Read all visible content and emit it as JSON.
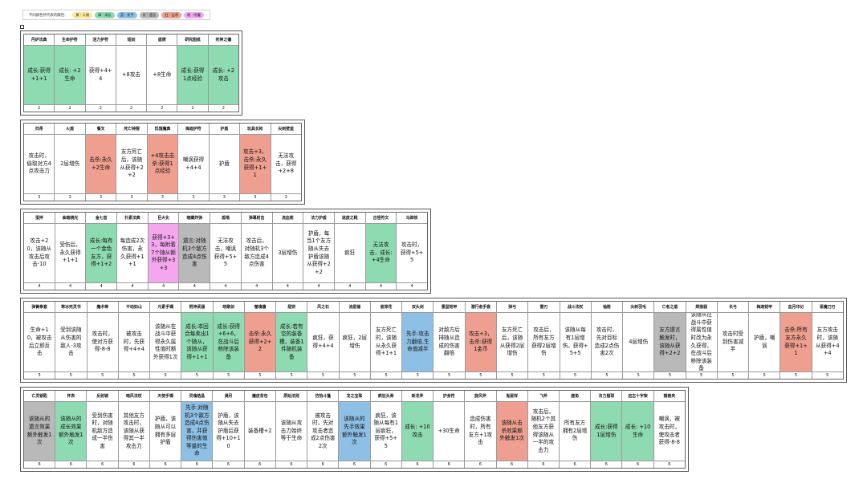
{
  "legend": {
    "title": "不同颜色所代表的属性：",
    "chips": [
      {
        "label": "黄 - 人物",
        "color": "#fbe89a"
      },
      {
        "label": "绿 - 成长",
        "color": "#8fdbb1"
      },
      {
        "label": "蓝 - 先手",
        "color": "#8ec0e6"
      },
      {
        "label": "灰 - 遗言",
        "color": "#b9b9b9"
      },
      {
        "label": "红 - 击杀",
        "color": "#ee9f8f"
      },
      {
        "label": "粉 - 附魔",
        "color": "#f4a7ef"
      }
    ]
  },
  "tiers": [
    {
      "tier": "2",
      "items": [
        {
          "name": "丹炉法典",
          "desc": "成长:获得+1+1",
          "color": "green"
        },
        {
          "name": "生命护符",
          "desc": "成长: +2生命",
          "color": "green"
        },
        {
          "name": "活力护符",
          "desc": "获得+4+4",
          "color": "none"
        },
        {
          "name": "短剑",
          "desc": "+8攻击",
          "color": "none"
        },
        {
          "name": "盾牌",
          "desc": "+8生命",
          "color": "none"
        },
        {
          "name": "研究图纸",
          "desc": "成长:获得1点经验",
          "color": "green"
        },
        {
          "name": "死神之镰",
          "desc": "成长: +2攻击",
          "color": "green"
        }
      ]
    },
    {
      "tier": "3",
      "items": [
        {
          "name": "扫帚",
          "desc": "攻击时，偷取对方4点攻击力",
          "color": "none"
        },
        {
          "name": "火盾",
          "desc": "2层增伤",
          "color": "none"
        },
        {
          "name": "餐叉",
          "desc": "击杀:永久+2生命",
          "color": "red"
        },
        {
          "name": "死亡钟摆",
          "desc": "友方死亡后，该随从获得+2+2",
          "color": "none"
        },
        {
          "name": "饥饿魔典",
          "desc": "+4攻击击杀:获得1点经验",
          "color": "red"
        },
        {
          "name": "梅迦护符",
          "desc": "嘲讽获得+4+4",
          "color": "none"
        },
        {
          "name": "护盾",
          "desc": "护盾",
          "color": "none"
        },
        {
          "name": "玩具长枪",
          "desc": "攻击+3，击杀:永久获得+1+1",
          "color": "red"
        },
        {
          "name": "尖刺壁垒",
          "desc": "无法攻击，获得+2+8",
          "color": "none"
        }
      ]
    },
    {
      "tier": "4",
      "items": [
        {
          "name": "蛋拌",
          "desc": "攻击+20，该随从攻击后攻击-10",
          "color": "none"
        },
        {
          "name": "曲端镜光",
          "desc": "受伤后，永久获得+1+1",
          "color": "none"
        },
        {
          "name": "金七首",
          "desc": "成长:每有一个金色友方，获得+1+2",
          "color": "green"
        },
        {
          "name": "扑素法典",
          "desc": "每造成2次伤害，永久获得+1+1",
          "color": "none"
        },
        {
          "name": "巨大化",
          "desc": "获得+3+3，每附着7个随从额外获得+3+3",
          "color": "pink"
        },
        {
          "name": "暗藏炸弹",
          "desc": "遗言:对随机3个敌方造成4点伤害",
          "color": "gray"
        },
        {
          "name": "盾墙",
          "desc": "无法攻击，嘲讽获得+5+5",
          "color": "none"
        },
        {
          "name": "弹幕射击",
          "desc": "攻击后，对随机3个敌方造成4点伤害",
          "color": "none"
        },
        {
          "name": "流血箭",
          "desc": "3层增伤",
          "color": "none"
        },
        {
          "name": "法力护盾",
          "desc": "护盾，每当1个友方随从失去护盾该随从获得+2+2",
          "color": "none"
        },
        {
          "name": "速度之靴",
          "desc": "疯狂",
          "color": "none"
        },
        {
          "name": "古怪符文",
          "desc": "无法攻击，成长: +4生命",
          "color": "green"
        },
        {
          "name": "马蹄铁",
          "desc": "攻击时，获得+5+5",
          "color": "none"
        }
      ]
    },
    {
      "tier": "5",
      "items": [
        {
          "name": "弹簧拳套",
          "desc": "生命+10，被攻击后立即反击",
          "color": "none"
        },
        {
          "name": "寒冰死灵书",
          "desc": "受到该随从伤害的敌人-3攻击",
          "color": "none"
        },
        {
          "name": "魔术棒",
          "desc": "攻击时，使对方获得-8-8",
          "color": "none"
        },
        {
          "name": "不动如山",
          "desc": "被攻击时，先获得+4+4",
          "color": "none"
        },
        {
          "name": "元素手镯",
          "desc": "该随从在战斗中获得永久属性值时额外获得1次",
          "color": "none"
        },
        {
          "name": "附神武器",
          "desc": "成长:本回合每卖出1个随从，该随从获得+1+1",
          "color": "green"
        },
        {
          "name": "晓歌剑",
          "desc": "成长:获得+6+6，在战斗后移除该装备",
          "color": "green"
        },
        {
          "name": "噬魂镰",
          "desc": "击杀:永久获得+2+2",
          "color": "red"
        },
        {
          "name": "甜饼",
          "desc": "成长:若有空的装备槽，装备1件随机装备",
          "color": "green"
        },
        {
          "name": "风之石",
          "desc": "疯狂，获得+4+4",
          "color": "none"
        },
        {
          "name": "流星锤",
          "desc": "疯狂，2层增伤",
          "color": "none"
        },
        {
          "name": "彼岸花",
          "desc": "友方死亡时，该随从永久获得+1+1",
          "color": "none"
        },
        {
          "name": "双头剑",
          "desc": "先手:攻击力翻倍,生命值减半",
          "color": "blue"
        },
        {
          "name": "重型铠甲",
          "desc": "对敌方后排随从造成的伤害翻倍",
          "color": "none"
        },
        {
          "name": "潜行者手套",
          "desc": "攻击+3，击杀:获得1金币",
          "color": "red"
        },
        {
          "name": "弹弓",
          "desc": "友方死亡后，该随从获得2层增伤",
          "color": "none"
        },
        {
          "name": "雷刃",
          "desc": "攻击后，所有友方获得2层增伤",
          "color": "none"
        },
        {
          "name": "战斗法杖",
          "desc": "该随从每有1层增伤，获得+5+5",
          "color": "none"
        },
        {
          "name": "袖箭",
          "desc": "攻击时，先对目标造成2点伤害2次",
          "color": "none"
        },
        {
          "name": "尖刺羽毛",
          "desc": "4层增伤",
          "color": "none"
        },
        {
          "name": "亡者之盾",
          "desc": "友方遗言触发时，该随从获得+2+2",
          "color": "gray"
        },
        {
          "name": "焊接器",
          "desc": "该随从在战斗中获得属性值时改为永久获得，在战斗后移除该装备",
          "color": "none"
        },
        {
          "name": "长弓",
          "desc": "攻击时受到伤害减半",
          "color": "none"
        },
        {
          "name": "梅迦铠甲",
          "desc": "护盾，嘲讽",
          "color": "none"
        },
        {
          "name": "血月印记",
          "desc": "击杀:所有友方永久获得+1+1",
          "color": "red"
        },
        {
          "name": "恶魔刀刃",
          "desc": "友方攻击时，该随从获得+4+4",
          "color": "none"
        }
      ]
    },
    {
      "tier": "6",
      "items": [
        {
          "name": "亡灵钥匙",
          "desc": "该随从的遗言效果额外触发1次",
          "color": "gray"
        },
        {
          "name": "怀表",
          "desc": "该随从的成长效果额外触发1次",
          "color": "green"
        },
        {
          "name": "反射镜",
          "desc": "受到伤害时，对随机敌方造成一半伤害",
          "color": "none"
        },
        {
          "name": "暗风法杖",
          "desc": "其他友方攻击时，该随从获得其一半攻击力",
          "color": "none"
        },
        {
          "name": "天使手镯",
          "desc": "护盾，该随从可以拥有多层护盾",
          "color": "none"
        },
        {
          "name": "灵魂结晶",
          "desc": "先手:对随机3个敌方造成4点伤害，并获得伤害值等量的生命",
          "color": "blue"
        },
        {
          "name": "满月",
          "desc": "护盾，该随从失去护盾后获得+10+10",
          "color": "none"
        },
        {
          "name": "魔皮背包",
          "desc": "装备槽+2",
          "color": "none"
        },
        {
          "name": "原始法则",
          "desc": "该随从攻击力始终等于生命",
          "color": "none"
        },
        {
          "name": "仿热斗篷",
          "desc": "被攻击时，先对攻击者造成2点伤害2次",
          "color": "none"
        },
        {
          "name": "龙之宝珠",
          "desc": "该随从的先手效果额外触发1次",
          "color": "blue"
        },
        {
          "name": "疯狂头骨",
          "desc": "疯狂，该随从每有1层疯狂，获得+5+5",
          "color": "none"
        },
        {
          "name": "斩龙斧",
          "desc": "成长: +10攻击",
          "color": "green"
        },
        {
          "name": "护身符",
          "desc": "+30生命",
          "color": "none"
        },
        {
          "name": "旋风斧",
          "desc": "造成伤害时，所有友方+1攻击",
          "color": "none"
        },
        {
          "name": "鬼屋祥",
          "desc": "该随从击杀效果额外触发1次",
          "color": "red"
        },
        {
          "name": "飞斧",
          "desc": "攻击后，随机2个其他友方获得该随从一半的攻击力",
          "color": "none"
        },
        {
          "name": "鹿角",
          "desc": "所有友方拥有2层增伤",
          "color": "none"
        },
        {
          "name": "法力猫球",
          "desc": "成长:获得1层增伤",
          "color": "green"
        },
        {
          "name": "远古十字架",
          "desc": "成长: +10生命",
          "color": "green"
        },
        {
          "name": "捕兽夹",
          "desc": "嘲讽，被攻击时，使攻击者获得-8-8",
          "color": "none"
        }
      ]
    }
  ]
}
